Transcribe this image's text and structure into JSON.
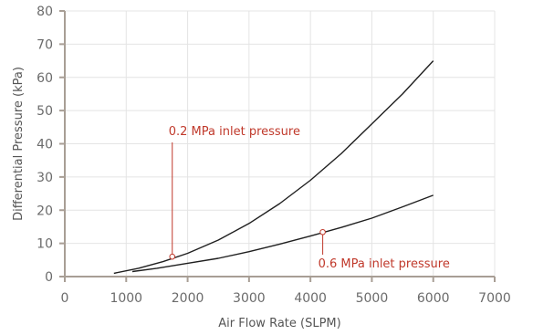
{
  "chart_data": {
    "type": "line",
    "xlabel": "Air Flow Rate (SLPM)",
    "ylabel": "Differential Pressure (kPa)",
    "xlim": [
      0,
      7000
    ],
    "ylim": [
      0,
      80
    ],
    "xticks": [
      0,
      1000,
      2000,
      3000,
      4000,
      5000,
      6000,
      7000
    ],
    "yticks": [
      0,
      10,
      20,
      30,
      40,
      50,
      60,
      70,
      80
    ],
    "grid": true,
    "series": [
      {
        "x": [
          800,
          1200,
          1600,
          2000,
          2500,
          3000,
          3500,
          4000,
          4500,
          5000,
          5500,
          6000
        ],
        "y": [
          1,
          2.5,
          4.5,
          7,
          11,
          16,
          22,
          29,
          37,
          46,
          55,
          65
        ]
      },
      {
        "x": [
          1100,
          1500,
          2000,
          2500,
          3000,
          3500,
          4000,
          4500,
          5000,
          5500,
          6000
        ],
        "y": [
          1.5,
          2.5,
          4,
          5.5,
          7.5,
          9.8,
          12.2,
          14.8,
          17.6,
          21,
          24.5
        ]
      }
    ],
    "annotations": [
      {
        "text": "0.2 MPa inlet pressure",
        "x": 1750,
        "y": 6
      },
      {
        "text": "0.6 MPa inlet pressure",
        "x": 4200,
        "y": 13.4
      }
    ],
    "colors": {
      "line": "#1f1f1f",
      "axis": "#a89e95",
      "grid": "#e4e4e4",
      "annotation": "#c0392b"
    }
  }
}
